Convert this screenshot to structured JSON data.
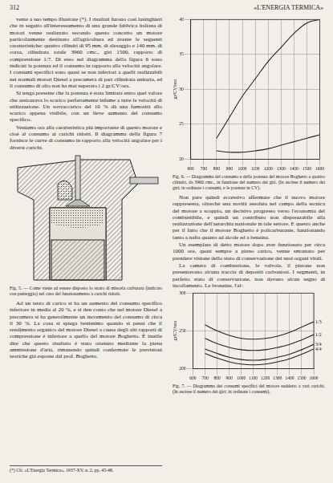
{
  "header": {
    "page": "312",
    "journal": "«L'ENERGIA TERMICA»"
  },
  "left_column": {
    "paragraphs_before": [
      "vente a suo tempo illustrate (*). I risultati furono così lusinghieri che in seguito all'interessamento di una grande fabbrica italiana di motori venne realizzato secondo questo concetto un motore particolarmente destinato all'agricoltura ed avente le seguenti caratteristiche: quattro cilindri di 95 mm. di alesaggio e 140 mm. di corsa, cilindrata totale 3960 cmc., giri 1500, rapporto di compressione 1:7. Di esso nel diagramma della figura 6 sono indicati la potenza ed il consumo in rapporto alla velocità angolare. I consumi specifici sono quasi se non inferiori a quelli realizzabili nei normali motori Diesel a precamera di pari cilindrata unitaria, ed il consumo di olio non ha mai superato i 2 gr/CV/ora.",
      "Si tenga presente che la potenza è stata limitata entro quel valore che assicurava lo scarico perfettamente infume a tutte le velocità di utilizzazione. Un sovraccarico del 10 % dà una fumosità allo scarico appena visibile, con un lieve aumento del consumo specifico.",
      "Veniamo ora alla caratteristica più importante di questo motore e cioè al consumo ai carichi ridotti. Il diagramma della figura 7 fornisce le curve di consumo in rapporto alla velocità angolare per i diversi carichi."
    ],
    "figure_5": {
      "caption": "Fig. 5. — Come viene ad essere disposto lo strato di miscela carburata (indicato con punteggio) nel caso del funzionamento a carichi ridotti."
    },
    "paragraphs_after": [
      "Ad un terzo di carico si ha un aumento del consumo specifico inferiore in media al 20 %, e si tien conto che nel motore Diesel a precamera si ha generalmente un incremento del consumo di circa il 30 %. La cosa si spiega benissimo quando si pensi che il rendimento organico del motore Diesel a causa degli alti rapporti di compressione è inferiore a quello del motore Boghetto. È inutile dire che questo risultato è stato ottenuto mediante la piena ammissione d'aria, rimanendo quindi confermate le previsioni teoriche già esposte dal prof. Boghetto."
    ],
    "footnote": "(*) Cfr. «L'Energia Termica», 1937-XV, n. 2, pp. 45-48."
  },
  "right_column": {
    "paragraphs": [
      "Non pare quindi eccessivo affermare che il nuovo motore rappresenta, oltrechè una novità assoluta nel campo della tecnica del motore a scoppio, un decisivo progresso verso l'economia del combustibile, e quindi un contributo non disprezzabile alla realizzazione dell'autarchia nazionale in tale settore. E questo anche per il fatto che il motore Boghetto è policarburante, funzionando tanto a nafta quanto ad alcole ed a benzina.",
      "Un esemplare di detto motore dopo aver funzionato per circa 1000 ore, quasi sempre a pieno carico, venne smontato per prendere visione dello stato di conservazione dei suoi organi vitali.",
      "La camera di combustione, le valvole, il pistone non presentavano alcuna traccia di depositi carboniosi. I segmenti, in perfetto stato di conservazione, non davano alcun segno di incollamento. Le bronzine, l'al-"
    ]
  },
  "chart_data": [
    {
      "type": "line",
      "caption": "Fig. 6. — Diagramma del consumo e della potenza del motore Boghetto a quattro cilindri, da 3960 cmc., in funzione del numero dei giri. (In ascisse il numero dei giri; in ordinate i consumi, e le potenze in CV).",
      "y_label": "gr/CV/ora",
      "x": [
        800,
        900,
        1000,
        1100,
        1200,
        1300,
        1400,
        1500,
        1600
      ],
      "series": [
        {
          "color": "#222222",
          "values": [
            23,
            26,
            29,
            31.5,
            34,
            36,
            38,
            39.5,
            40
          ]
        },
        {
          "color": "#222222",
          "values": [
            21.2,
            21,
            21,
            21.2,
            21.5,
            22,
            22.5,
            23,
            23.5
          ]
        }
      ],
      "xlim": [
        600,
        1600
      ],
      "xticks": [
        600,
        700,
        800,
        900,
        1000,
        1100,
        1200,
        1300,
        1400,
        1500,
        1600
      ],
      "ylim": [
        20,
        40
      ],
      "yticks": [
        20,
        25,
        30,
        35,
        40
      ],
      "grid": true
    },
    {
      "type": "line",
      "caption": "Fig. 7. — Diagramma dei consumi specifici del motore suddetto a vari carichi. (In ascisse il numero dei giri; in ordinate i consumi).",
      "y_label": "gr/CV/ora",
      "x": [
        700,
        800,
        900,
        1000,
        1100,
        1200,
        1300,
        1400,
        1500,
        1600
      ],
      "series": [
        {
          "name": "1/3",
          "color": "#222222",
          "values": [
            258,
            250,
            244,
            240,
            239,
            240,
            243,
            248,
            255,
            262
          ]
        },
        {
          "name": "1/2",
          "color": "#222222",
          "values": [
            240,
            233,
            228,
            225,
            224,
            225,
            228,
            232,
            238,
            245
          ]
        },
        {
          "name": "3/4",
          "color": "#222222",
          "values": [
            226,
            220,
            215,
            212,
            211,
            212,
            215,
            219,
            225,
            232
          ]
        },
        {
          "name": "4/4",
          "color": "#222222",
          "values": [
            220,
            214,
            209,
            206,
            205,
            206,
            209,
            213,
            219,
            226
          ]
        }
      ],
      "xlim": [
        600,
        1600
      ],
      "xticks": [
        600,
        700,
        800,
        900,
        1000,
        1100,
        1200,
        1300,
        1400,
        1500,
        1600
      ],
      "ylim": [
        200,
        300
      ],
      "yticks": [
        200,
        250,
        300
      ],
      "grid": true
    }
  ]
}
